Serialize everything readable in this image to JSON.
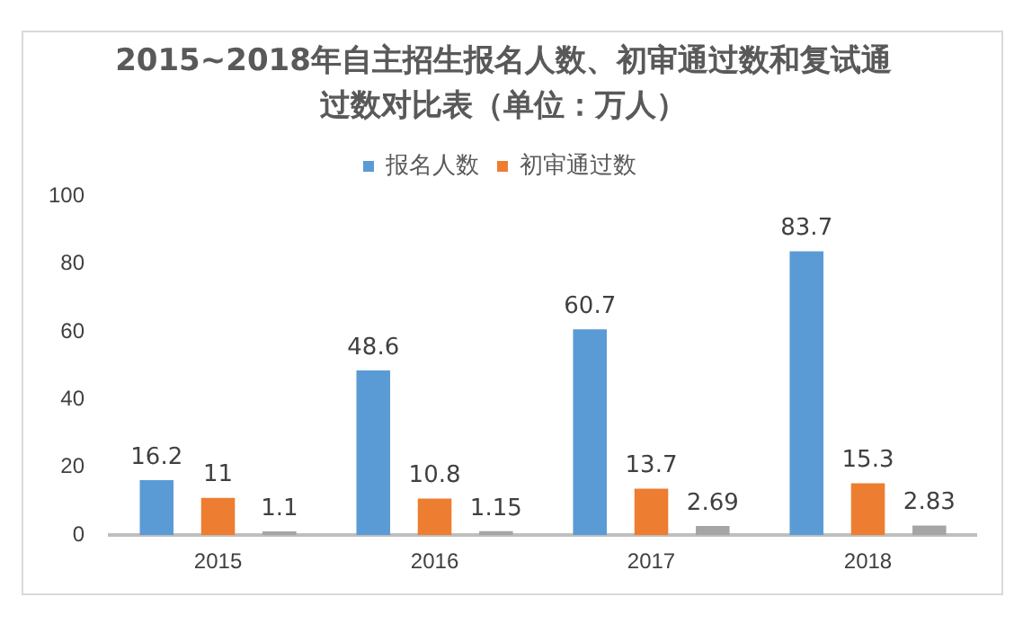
{
  "chart_data": {
    "type": "bar",
    "title": "2015~2018年自主招生报名人数、初审通过数和复试通过数对比表（单位：万人）",
    "categories": [
      "2015",
      "2016",
      "2017",
      "2018"
    ],
    "series": [
      {
        "name": "报名人数",
        "color": "#5b9bd5",
        "values": [
          16.2,
          48.6,
          60.7,
          83.7
        ]
      },
      {
        "name": "初审通过数",
        "color": "#ed7d31",
        "values": [
          11,
          10.8,
          13.7,
          15.3
        ]
      },
      {
        "color": "#a5a5a5",
        "values": [
          1.1,
          1.15,
          2.69,
          2.83
        ]
      }
    ],
    "ylim": [
      0,
      100
    ],
    "yticks": [
      0,
      20,
      40,
      60,
      80,
      100
    ],
    "grid": false,
    "legend": "top",
    "data_labels": true
  }
}
